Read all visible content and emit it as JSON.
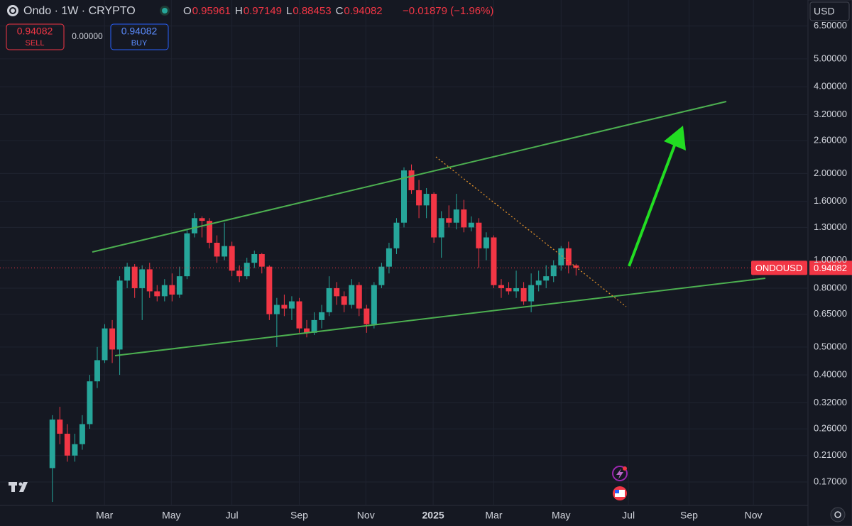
{
  "header": {
    "symbol": "Ondo · 1W · CRYPTO",
    "ohlc": [
      {
        "label": "O",
        "value": 0.95961
      },
      {
        "label": "H",
        "value": 0.97149
      },
      {
        "label": "L",
        "value": 0.88453
      },
      {
        "label": "C",
        "value": 0.94082
      }
    ],
    "change": "−0.01879 (−1.96%)",
    "sell": {
      "price": 0.94082,
      "label": "SELL"
    },
    "spread": "0.00000",
    "buy": {
      "price": 0.94082,
      "label": "BUY"
    },
    "currency": "USD",
    "price_tag": "ONDOUSD"
  },
  "chart_data": {
    "type": "candlestick",
    "log_scale": true,
    "grid": true,
    "up_color": "#26a69a",
    "down_color": "#f23645",
    "ylim": [
      0.141,
      8.0
    ],
    "yticks": [
      {
        "value": 6.5,
        "label": "6.50000"
      },
      {
        "value": 5,
        "label": "5.00000"
      },
      {
        "value": 4,
        "label": "4.00000"
      },
      {
        "value": 3.2,
        "label": "3.20000"
      },
      {
        "value": 2.6,
        "label": "2.60000"
      },
      {
        "value": 2,
        "label": "2.00000"
      },
      {
        "value": 1.6,
        "label": "1.60000"
      },
      {
        "value": 1.3,
        "label": "1.30000"
      },
      {
        "value": 1,
        "label": "1.00000"
      },
      {
        "value": 0.8,
        "label": "0.80000"
      },
      {
        "value": 0.65,
        "label": "0.65000"
      },
      {
        "value": 0.5,
        "label": "0.50000"
      },
      {
        "value": 0.4,
        "label": "0.40000"
      },
      {
        "value": 0.32,
        "label": "0.32000"
      },
      {
        "value": 0.26,
        "label": "0.26000"
      },
      {
        "value": 0.21,
        "label": "0.21000"
      },
      {
        "value": 0.17,
        "label": "0.17000"
      }
    ],
    "xlim": [
      -7,
      101
    ],
    "xticks": [
      {
        "value": 6.97,
        "label": "Mar"
      },
      {
        "value": 15.9,
        "label": "May"
      },
      {
        "value": 24.0,
        "label": "Jul"
      },
      {
        "value": 33.0,
        "label": "Sep"
      },
      {
        "value": 41.9,
        "label": "Nov"
      },
      {
        "value": 50.9,
        "label": "2025"
      },
      {
        "value": 59.0,
        "label": "Mar"
      },
      {
        "value": 68.0,
        "label": "May"
      },
      {
        "value": 77.0,
        "label": "Jul"
      },
      {
        "value": 85.1,
        "label": "Sep"
      },
      {
        "value": 93.7,
        "label": "Nov"
      }
    ],
    "open": [
      0.19,
      0.28,
      0.25,
      0.21,
      0.23,
      0.27,
      0.38,
      0.45,
      0.58,
      0.49,
      0.85,
      0.95,
      0.8,
      0.93,
      0.78,
      0.75,
      0.82,
      0.76,
      0.88,
      1.24,
      1.4,
      1.37,
      1.15,
      1.03,
      1.12,
      0.92,
      0.88,
      0.98,
      1.05,
      0.95,
      0.65,
      0.7,
      0.68,
      0.72,
      0.58,
      0.56,
      0.62,
      0.66,
      0.8,
      0.75,
      0.7,
      0.82,
      0.68,
      0.6,
      0.82,
      0.95,
      1.1,
      1.35,
      2.05,
      1.75,
      1.55,
      1.7,
      1.2,
      1.4,
      1.35,
      1.5,
      1.3,
      1.35,
      1.1,
      1.2,
      0.82,
      0.8,
      0.78,
      0.8,
      0.72,
      0.82,
      0.85,
      0.88,
      0.96,
      1.1,
      0.95961
    ],
    "high": [
      0.29,
      0.31,
      0.27,
      0.25,
      0.29,
      0.4,
      0.5,
      0.6,
      0.62,
      0.88,
      0.98,
      0.97,
      0.96,
      0.98,
      0.82,
      0.86,
      0.9,
      0.95,
      1.28,
      1.46,
      1.42,
      1.4,
      1.22,
      1.35,
      1.16,
      0.96,
      1.02,
      1.08,
      1.06,
      0.96,
      0.74,
      0.76,
      0.75,
      0.74,
      0.62,
      0.66,
      0.7,
      0.88,
      0.84,
      0.78,
      0.86,
      0.84,
      0.7,
      0.84,
      0.98,
      1.15,
      1.4,
      2.1,
      2.15,
      1.9,
      1.78,
      1.72,
      1.48,
      1.55,
      1.7,
      1.62,
      1.42,
      1.4,
      1.25,
      1.22,
      0.86,
      0.84,
      0.92,
      0.84,
      0.9,
      0.92,
      0.96,
      1.0,
      1.12,
      1.16,
      0.97149
    ],
    "low": [
      0.145,
      0.23,
      0.2,
      0.2,
      0.22,
      0.26,
      0.36,
      0.44,
      0.44,
      0.4,
      0.8,
      0.74,
      0.62,
      0.74,
      0.72,
      0.72,
      0.72,
      0.74,
      0.86,
      1.2,
      1.2,
      1.1,
      0.98,
      1.0,
      0.88,
      0.84,
      0.86,
      0.94,
      0.9,
      0.62,
      0.5,
      0.64,
      0.62,
      0.56,
      0.54,
      0.55,
      0.58,
      0.64,
      0.7,
      0.66,
      0.68,
      0.64,
      0.56,
      0.58,
      0.8,
      0.9,
      1.05,
      1.3,
      1.7,
      1.4,
      1.4,
      1.15,
      1.02,
      1.3,
      1.28,
      1.25,
      1.26,
      0.94,
      1.0,
      0.8,
      0.74,
      0.76,
      0.74,
      0.7,
      0.66,
      0.78,
      0.8,
      0.84,
      0.92,
      0.9,
      0.88453
    ],
    "close": [
      0.28,
      0.25,
      0.21,
      0.23,
      0.27,
      0.38,
      0.45,
      0.58,
      0.49,
      0.85,
      0.95,
      0.8,
      0.93,
      0.78,
      0.75,
      0.82,
      0.76,
      0.88,
      1.24,
      1.4,
      1.37,
      1.15,
      1.03,
      1.12,
      0.92,
      0.88,
      0.98,
      1.05,
      0.95,
      0.65,
      0.7,
      0.68,
      0.72,
      0.58,
      0.56,
      0.62,
      0.66,
      0.8,
      0.75,
      0.7,
      0.82,
      0.68,
      0.6,
      0.82,
      0.95,
      1.1,
      1.35,
      2.05,
      1.75,
      1.55,
      1.7,
      1.2,
      1.4,
      1.35,
      1.5,
      1.3,
      1.35,
      1.1,
      1.2,
      0.82,
      0.8,
      0.78,
      0.8,
      0.72,
      0.82,
      0.85,
      0.88,
      0.96,
      1.1,
      0.96,
      0.94082
    ]
  }
}
